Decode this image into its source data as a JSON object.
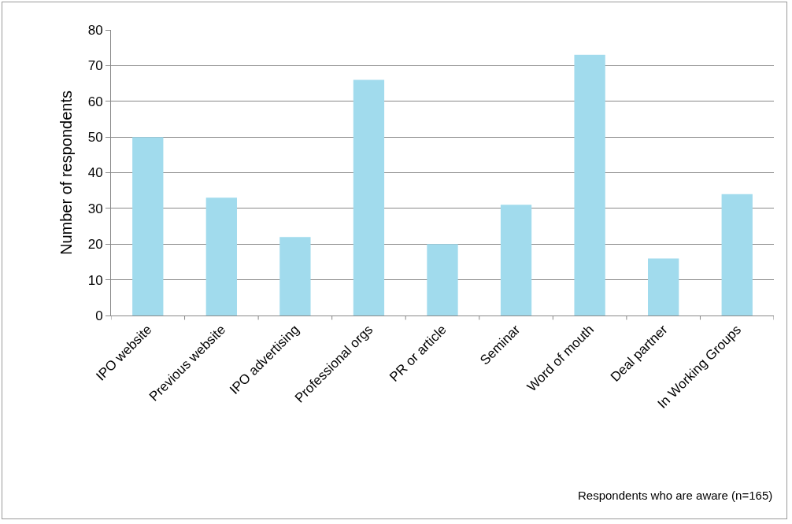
{
  "chart_data": {
    "type": "bar",
    "ylabel": "Number of respondents",
    "categories": [
      "IPO website",
      "Previous website",
      "IPO advertising",
      "Professional orgs",
      "PR or article",
      "Seminar",
      "Word of mouth",
      "Deal partner",
      "In Working Groups"
    ],
    "values": [
      50,
      33,
      22,
      66,
      20,
      31,
      73,
      16,
      34
    ],
    "color": "#a1dbed",
    "ylim": [
      0,
      80
    ],
    "yticks": [
      0,
      10,
      20,
      30,
      40,
      50,
      60,
      70,
      80
    ],
    "grid": "y",
    "annotations": [
      "Respondents who are aware (n=165)"
    ]
  }
}
